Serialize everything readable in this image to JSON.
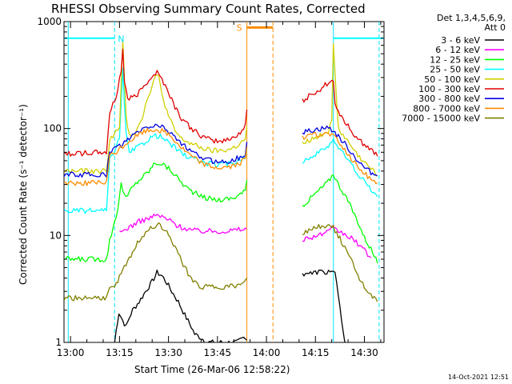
{
  "chart_data": {
    "type": "line",
    "title": "RHESSI Observing Summary Count Rates, Corrected",
    "xlabel": "Start Time (26-Mar-06 12:58:22)",
    "ylabel": "Corrected Count Rate (s⁻¹ detector⁻¹)",
    "y_scale": "log",
    "ylim": [
      1,
      1000
    ],
    "xlim_minutes": [
      -2,
      96
    ],
    "x_ticks": [
      "13:00",
      "13:15",
      "13:30",
      "13:45",
      "14:00",
      "14:15",
      "14:30"
    ],
    "y_ticks": [
      "1",
      "10",
      "100",
      "1000"
    ],
    "legend_header": [
      "Det 1,3,4,5,6,9,",
      "Att 0"
    ],
    "legend_position": "right",
    "series": [
      {
        "name": "3 - 6 keV",
        "color": "#000000",
        "x": [
          13.5,
          14,
          14.8,
          16,
          17,
          18,
          19,
          21,
          23,
          25,
          26.5,
          28,
          29.5,
          31,
          33,
          35,
          37,
          38,
          40,
          42,
          51,
          53,
          54
        ],
        "y": [
          1.0,
          1.3,
          1.9,
          1.6,
          1.4,
          1.7,
          2.0,
          2.4,
          3.0,
          3.7,
          4.5,
          4.2,
          3.6,
          3.0,
          2.4,
          1.8,
          1.4,
          1.2,
          1.1,
          1.0,
          1.0,
          1.1,
          1.05
        ]
      },
      {
        "name": "3 - 6 keV (after)",
        "color": "#000000",
        "x": [
          71,
          72,
          74,
          76,
          78,
          80,
          81,
          84
        ],
        "y": [
          4.3,
          4.5,
          4.4,
          4.6,
          4.5,
          4.7,
          4.4,
          1.0
        ]
      },
      {
        "name": "6 - 12 keV",
        "color": "#ff00ff",
        "x": [
          15,
          16,
          18,
          21,
          24,
          26.5,
          29,
          31,
          33,
          36,
          39,
          42,
          45,
          48,
          51,
          54
        ],
        "y": [
          10.5,
          11.0,
          12.0,
          13.5,
          14.5,
          15.5,
          14.5,
          13.5,
          12.2,
          11.5,
          11.0,
          11.0,
          11.0,
          11.0,
          11.3,
          11.5
        ]
      },
      {
        "name": "6 - 12 keV (after)",
        "color": "#ff00ff",
        "x": [
          71,
          73,
          75,
          77,
          79,
          80,
          82,
          84,
          86,
          88,
          90,
          92
        ],
        "y": [
          9.2,
          9.5,
          9.9,
          10.3,
          10.8,
          11.5,
          11.0,
          10.2,
          9.4,
          8.4,
          7.2,
          6.2
        ]
      },
      {
        "name": "12 - 25 keV",
        "color": "#00ff00",
        "x": [
          -2,
          8,
          11,
          12,
          14.5,
          15.5,
          17,
          18.5,
          21,
          24,
          26,
          28,
          31,
          33,
          35,
          37,
          40,
          43,
          46,
          48,
          50,
          52,
          53.5,
          54
        ],
        "y": [
          6.0,
          6.0,
          6.0,
          9.0,
          18.0,
          30.0,
          22.0,
          27.0,
          33.0,
          40.0,
          48.0,
          47.0,
          40.0,
          34.0,
          29.0,
          26.0,
          23.0,
          22.0,
          21.5,
          22.0,
          22.5,
          24.5,
          26.0,
          33.0
        ]
      },
      {
        "name": "12 - 25 keV (after)",
        "color": "#00ff00",
        "x": [
          71,
          73,
          75,
          77,
          79,
          80.5,
          82,
          84,
          86,
          88,
          90,
          92,
          94
        ],
        "y": [
          19.0,
          21.5,
          24.5,
          28.0,
          32.0,
          38.0,
          30.0,
          24.0,
          18.0,
          13.5,
          9.5,
          7.5,
          5.5
        ]
      },
      {
        "name": "25 - 50 keV",
        "color": "#00ffff",
        "x": [
          -2,
          10,
          11,
          12,
          15,
          16,
          17,
          18,
          19,
          21,
          23,
          25,
          27,
          29,
          31,
          33,
          35,
          38,
          41,
          44,
          47,
          50,
          52,
          53.5,
          54
        ],
        "y": [
          17.0,
          17.0,
          17.0,
          50.0,
          80.0,
          350.0,
          90.0,
          58.0,
          62.0,
          68.0,
          76.0,
          84.0,
          86.0,
          78.0,
          70.0,
          62.0,
          56.0,
          52.0,
          48.0,
          46.0,
          46.0,
          48.0,
          52.0,
          55.0,
          65.0
        ]
      },
      {
        "name": "25 - 50 keV (after)",
        "color": "#00ffff",
        "x": [
          71,
          73,
          75,
          77,
          79,
          80.5,
          82,
          84,
          86,
          88,
          90,
          92,
          94
        ],
        "y": [
          50.0,
          53.0,
          57.0,
          62.0,
          70.0,
          80.0,
          66.0,
          56.0,
          46.0,
          38.0,
          32.0,
          27.0,
          23.0
        ]
      },
      {
        "name": "50 - 100 keV",
        "color": "#d0d000",
        "x": [
          -2,
          10,
          11,
          12,
          15,
          16,
          17,
          18,
          20,
          22,
          24,
          26,
          27,
          28,
          30,
          32,
          34,
          37,
          40,
          43,
          46,
          49,
          52,
          53.5,
          54
        ],
        "y": [
          40.0,
          40.0,
          40.0,
          80.0,
          100.0,
          650.0,
          130.0,
          85.0,
          95.0,
          130.0,
          210.0,
          310.0,
          300.0,
          210.0,
          130.0,
          95.0,
          80.0,
          72.0,
          66.0,
          62.0,
          62.0,
          64.0,
          72.0,
          80.0,
          105.0
        ]
      },
      {
        "name": "50 - 100 keV (after)",
        "color": "#d0d000",
        "x": [
          71,
          73,
          75,
          77,
          79,
          80,
          80.5,
          82,
          84,
          86,
          88,
          90,
          92,
          94
        ],
        "y": [
          75.0,
          78.0,
          82.0,
          87.0,
          95.0,
          115.0,
          600.0,
          100.0,
          82.0,
          68.0,
          56.0,
          48.0,
          42.0,
          36.0
        ]
      },
      {
        "name": "100 - 300 keV",
        "color": "#e00000",
        "x": [
          -2,
          11,
          12,
          14,
          15.5,
          16,
          16.5,
          17.5,
          20,
          22,
          24,
          26.5,
          28,
          30,
          32,
          34,
          37,
          40,
          43,
          46,
          49,
          52,
          53.5,
          54
        ],
        "y": [
          58.0,
          60.0,
          140.0,
          200.0,
          350.0,
          550.0,
          280.0,
          190.0,
          200.0,
          240.0,
          290.0,
          340.0,
          290.0,
          220.0,
          160.0,
          125.0,
          100.0,
          85.0,
          78.0,
          76.0,
          80.0,
          92.0,
          105.0,
          150.0
        ]
      },
      {
        "name": "100 - 300 keV (after)",
        "color": "#e00000",
        "x": [
          71,
          73,
          75,
          77,
          79,
          80.5,
          81,
          83,
          85,
          87,
          89,
          91,
          93,
          94
        ],
        "y": [
          180.0,
          200.0,
          220.0,
          240.0,
          270.0,
          290.0,
          170.0,
          130.0,
          105.0,
          88.0,
          75.0,
          67.0,
          60.0,
          55.0
        ]
      },
      {
        "name": "300 - 800 keV",
        "color": "#0000e0",
        "x": [
          -2,
          11,
          12,
          14,
          16,
          18,
          20,
          22,
          24,
          26.5,
          28,
          30,
          32,
          34,
          37,
          40,
          43,
          46,
          49,
          52,
          53.5,
          54
        ],
        "y": [
          37.0,
          37.0,
          60.0,
          66.0,
          72.0,
          80.0,
          90.0,
          98.0,
          104.0,
          107.0,
          104.0,
          96.0,
          84.0,
          72.0,
          60.0,
          54.0,
          50.0,
          49.0,
          50.0,
          54.0,
          58.0,
          75.0
        ]
      },
      {
        "name": "300 - 800 keV (after)",
        "color": "#0000e0",
        "x": [
          71,
          73,
          75,
          77,
          79,
          80.5,
          82,
          84,
          86,
          88,
          90,
          92,
          94
        ],
        "y": [
          92.0,
          95.0,
          98.0,
          100.0,
          102.0,
          95.0,
          84.0,
          72.0,
          60.0,
          50.0,
          43.0,
          39.0,
          36.0
        ]
      },
      {
        "name": "800 - 7000 keV",
        "color": "#ff8c00",
        "x": [
          -2,
          11,
          12,
          14,
          16,
          18,
          20,
          22,
          24,
          26.5,
          28,
          30,
          32,
          34,
          37,
          40,
          43,
          46,
          49,
          52,
          53.5,
          54
        ],
        "y": [
          31.0,
          31.0,
          55.0,
          60.0,
          68.0,
          76.0,
          84.0,
          92.0,
          96.0,
          98.0,
          95.0,
          88.0,
          77.0,
          66.0,
          55.0,
          48.0,
          44.0,
          43.0,
          44.0,
          47.0,
          52.0,
          67.0
        ]
      },
      {
        "name": "800 - 7000 keV (after)",
        "color": "#ff8c00",
        "x": [
          71,
          73,
          75,
          77,
          79,
          80.5,
          82,
          84,
          86,
          88,
          90,
          92,
          94
        ],
        "y": [
          82.0,
          85.0,
          87.0,
          90.0,
          90.0,
          86.0,
          75.0,
          63.0,
          52.0,
          44.0,
          38.0,
          34.0,
          31.0
        ]
      },
      {
        "name": "7000 - 15000 keV",
        "color": "#808000",
        "x": [
          -2,
          10,
          11,
          12,
          14,
          16,
          18,
          20,
          22,
          24,
          26.5,
          28,
          30,
          32,
          34,
          36,
          38,
          40,
          44,
          48,
          52,
          53.5,
          54
        ],
        "y": [
          2.6,
          2.6,
          2.6,
          3.1,
          3.6,
          4.6,
          6.2,
          8.0,
          9.8,
          11.5,
          12.8,
          12.0,
          10.0,
          7.8,
          5.8,
          4.4,
          3.6,
          3.3,
          3.3,
          3.3,
          3.4,
          3.6,
          4.0
        ]
      },
      {
        "name": "7000 - 15000 keV (after)",
        "color": "#808000",
        "x": [
          71,
          73,
          75,
          77,
          79,
          80.5,
          82,
          84,
          86,
          88,
          90,
          92,
          94
        ],
        "y": [
          10.5,
          11.2,
          11.8,
          12.2,
          12.5,
          11.8,
          10.0,
          7.8,
          5.8,
          4.3,
          3.3,
          2.8,
          2.4
        ]
      }
    ],
    "annotations": {
      "night_bars": [
        {
          "x": [
            -2,
            13.5
          ],
          "y": 700,
          "color": "#00ffff"
        },
        {
          "x": [
            80.5,
            96
          ],
          "y": 700,
          "color": "#00ffff"
        }
      ],
      "night_label": "N",
      "saa_bar": {
        "x": [
          54,
          62
        ],
        "y": 880,
        "color": "#ff8c00"
      },
      "saa_label": "S",
      "vlines_cyan_solid": [
        -0.7,
        80.5
      ],
      "vlines_cyan_dashed": [
        13.5,
        94.5
      ],
      "vlines_orange_solid": [
        54
      ],
      "vlines_orange_dashed": [
        62
      ]
    }
  },
  "legend_rows": [
    {
      "label": "3 - 6 keV",
      "color": "#000000"
    },
    {
      "label": "6 - 12 keV",
      "color": "#ff00ff"
    },
    {
      "label": "12 - 25 keV",
      "color": "#00ff00"
    },
    {
      "label": "25 - 50 keV",
      "color": "#00ffff"
    },
    {
      "label": "50 - 100 keV",
      "color": "#d0d000"
    },
    {
      "label": "100 - 300 keV",
      "color": "#e00000"
    },
    {
      "label": "300 - 800 keV",
      "color": "#0000e0"
    },
    {
      "label": "800 - 7000 keV",
      "color": "#ff8c00"
    },
    {
      "label": "7000 - 15000 keV",
      "color": "#808000"
    }
  ],
  "footer_timestamp": "14-Oct-2021 12:51"
}
